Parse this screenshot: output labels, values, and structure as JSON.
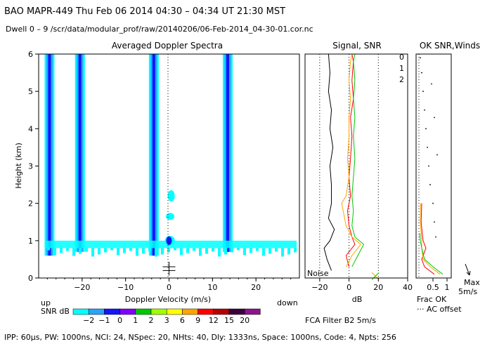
{
  "header": {
    "line1": "BAO  MAPR-449  Thu Feb 06 2014 04:30 – 04:34 UT 21:30 MST",
    "line2": "Dwell  0 –  9   /scr/data/modular_prof/raw/20140206/06-Feb-2014_04-30-01.cor.nc"
  },
  "footer": {
    "params": "IPP: 60μs,  PW: 1000ns,  NCI: 24,  NSpec: 20, NHts: 40,  Dly: 1333ns,  Space: 1000ns,  Code: 4,  Npts: 256",
    "fca_filter": "FCA Filter B2   5m/s"
  },
  "colorbar": {
    "label_up": "up",
    "label_down": "down",
    "label_snr": "SNR dB",
    "levels": [
      "−2",
      "−1",
      "0",
      "1",
      "2",
      "3",
      "6",
      "9",
      "12",
      "15",
      "20"
    ],
    "colors": [
      "#00ffff",
      "#29a3ff",
      "#1414ff",
      "#7f00ff",
      "#00c800",
      "#a0ff00",
      "#ffff00",
      "#ffa500",
      "#ff0000",
      "#b40000",
      "#3c003c",
      "#8c148c"
    ]
  },
  "chart_data": [
    {
      "type": "heatmap",
      "title": "Averaged Doppler Spectra",
      "xlabel": "Doppler Velocity (m/s)",
      "ylabel": "Height (km)",
      "xlim": [
        -30,
        30
      ],
      "ylim": [
        0,
        6
      ],
      "xticks": [
        -20,
        -10,
        0,
        10,
        20
      ],
      "yticks": [
        0,
        1,
        2,
        3,
        4,
        5,
        6
      ],
      "vertical_bands": [
        {
          "center": -27.5,
          "snr_peak": -1,
          "height_range": [
            0.6,
            6
          ]
        },
        {
          "center": -20.5,
          "snr_peak": -1,
          "height_range": [
            0.7,
            6
          ]
        },
        {
          "center": -3.5,
          "snr_peak": -1,
          "height_range": [
            0.6,
            6
          ]
        },
        {
          "center": 13.5,
          "snr_peak": -1,
          "height_range": [
            0.7,
            6
          ]
        }
      ],
      "ground_clutter_heights_km": [
        0.8,
        1.0
      ],
      "markers": [
        {
          "x": 0,
          "y": 0.3,
          "symbol": "+"
        },
        {
          "x": 0,
          "y": 0.2,
          "symbol": "+"
        }
      ]
    },
    {
      "type": "line",
      "title": "Signal, SNR",
      "xlabel": "dB",
      "xlim": [
        -30,
        40
      ],
      "ylim": [
        0,
        6
      ],
      "xticks": [
        -20,
        0,
        20,
        40
      ],
      "noise_label": "Noise",
      "series": [
        {
          "name": "Signal",
          "color": "#000000",
          "y": [
            0.2,
            0.5,
            0.8,
            1.0,
            1.3,
            1.6,
            2.0,
            2.5,
            3.0,
            3.5,
            4.0,
            4.5,
            5.0,
            5.5,
            6.0
          ],
          "x": [
            -12,
            -15,
            -17,
            -13,
            -10,
            -14,
            -12,
            -12,
            -13,
            -11,
            -13,
            -12,
            -14,
            -13,
            -14
          ]
        },
        {
          "name": "0",
          "color": "#ff0000",
          "y": [
            0.3,
            0.6,
            0.9,
            1.1,
            1.4,
            1.8,
            2.2,
            2.7,
            3.2,
            3.8,
            4.3,
            4.8,
            5.3,
            5.8,
            6.0
          ],
          "x": [
            0,
            -2,
            4,
            2,
            0,
            -1,
            1,
            0,
            1,
            2,
            1,
            3,
            2,
            3,
            2
          ]
        },
        {
          "name": "1",
          "color": "#ffa500",
          "y": [
            0.3,
            0.6,
            0.9,
            1.1,
            1.4,
            1.8,
            2.0,
            2.2,
            2.7,
            3.2,
            3.8,
            4.3,
            4.8,
            5.3,
            5.8,
            6.0
          ],
          "x": [
            -2,
            2,
            8,
            2,
            -2,
            -4,
            -5,
            -2,
            0,
            -1,
            0,
            0,
            1,
            0,
            1,
            2
          ]
        },
        {
          "name": "2",
          "color": "#00c800",
          "y": [
            0.3,
            0.6,
            0.9,
            1.1,
            1.4,
            1.8,
            2.2,
            2.7,
            3.2,
            3.8,
            4.3,
            4.8,
            5.3,
            5.8,
            6.0
          ],
          "x": [
            2,
            6,
            10,
            4,
            2,
            3,
            2,
            3,
            4,
            3,
            4,
            3,
            4,
            3,
            4
          ]
        }
      ],
      "markers": [
        {
          "x": 18,
          "y": 0.05,
          "symbol": "x"
        }
      ],
      "legend": [
        "0",
        "1",
        "2"
      ]
    },
    {
      "type": "line",
      "title": "OK SNR,Winds",
      "xlabel": "Frac OK",
      "xlim": [
        0,
        1
      ],
      "ylim": [
        0,
        6
      ],
      "xticks": [
        0.5,
        1
      ],
      "tick_labels": [
        "0.5",
        "1"
      ],
      "legend_note": "··· AC offset",
      "max_label": "Max",
      "max_value": "5m/s",
      "series": [
        {
          "name": "0",
          "color": "#ff0000",
          "y": [
            0.1,
            0.3,
            0.5,
            0.8,
            1.0,
            1.2,
            1.5,
            2.0
          ],
          "x": [
            0.55,
            0.2,
            0.1,
            0.25,
            0.15,
            0.12,
            0.08,
            0.1
          ]
        },
        {
          "name": "1",
          "color": "#ffa500",
          "y": [
            0.1,
            0.3,
            0.5,
            0.8,
            1.0,
            1.2,
            1.5,
            2.0
          ],
          "x": [
            0.75,
            0.4,
            0.15,
            0.1,
            0.1,
            0.08,
            0.05,
            0.06
          ]
        },
        {
          "name": "2",
          "color": "#00c800",
          "y": [
            0.1,
            0.3,
            0.5,
            0.8,
            1.0,
            1.2
          ],
          "x": [
            0.85,
            0.5,
            0.2,
            0.1,
            0.05,
            0.03
          ]
        }
      ],
      "dots": [
        [
          0.05,
          5.9
        ],
        [
          0.1,
          5.5
        ],
        [
          0.15,
          5.0
        ],
        [
          0.2,
          4.5
        ],
        [
          0.25,
          4.0
        ],
        [
          0.3,
          3.5
        ],
        [
          0.35,
          3.0
        ],
        [
          0.4,
          2.5
        ],
        [
          0.5,
          2.0
        ],
        [
          0.55,
          1.5
        ],
        [
          0.6,
          1.1
        ],
        [
          0.45,
          5.2
        ],
        [
          0.55,
          4.3
        ],
        [
          0.65,
          3.3
        ]
      ]
    }
  ]
}
